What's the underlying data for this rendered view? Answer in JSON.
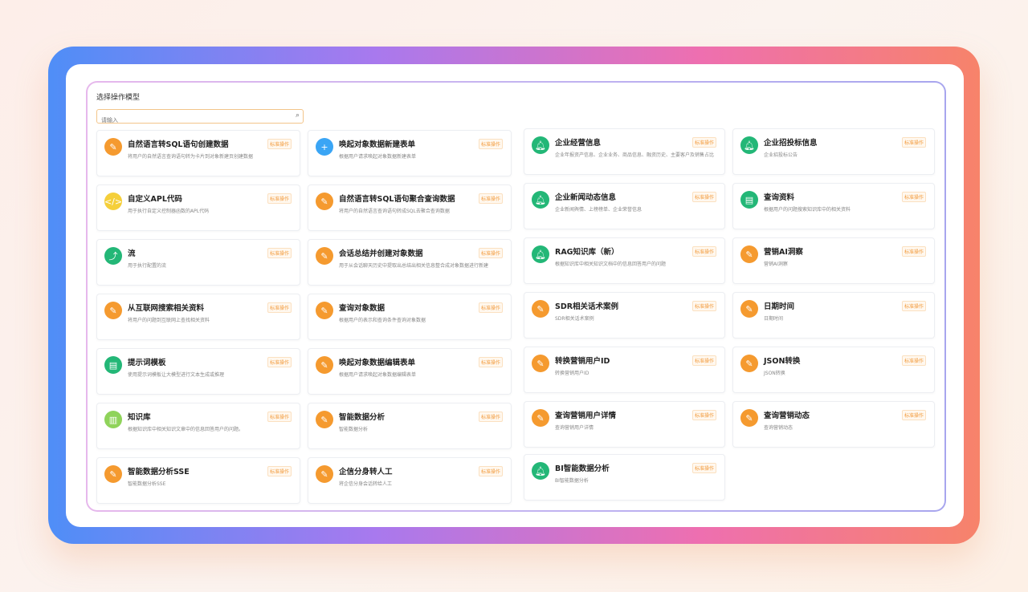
{
  "header": {
    "title": "选择操作模型"
  },
  "search": {
    "placeholder": "请输入",
    "icon": "search-icon"
  },
  "colors": {
    "orange": "#f59a2f",
    "green": "#23b777",
    "blue": "#3aa5f5",
    "yellow": "#f5cf3a",
    "lightgreen": "#8fd35a",
    "badge": "#f29a3b"
  },
  "cards": [
    {
      "name": "自然语言转SQL语句创建数据",
      "desc": "将用户的自然语言查询语句转为卡片到对象新建页创建数据",
      "badge": "标准操作",
      "icon": "edit",
      "color": "orange"
    },
    {
      "name": "唤起对象数据新建表单",
      "desc": "根据用户请求唤起对象数据新建表单",
      "badge": "标准操作",
      "icon": "plus",
      "color": "blue"
    },
    {
      "name": "自定义APL代码",
      "desc": "用于执行自定义控制器函数的APL代码",
      "badge": "标准操作",
      "icon": "code",
      "color": "yellow"
    },
    {
      "name": "自然语言转SQL语句聚合查询数据",
      "desc": "将用户的自然语言查询语句转成SQL去聚合查询数据",
      "badge": "标准操作",
      "icon": "edit",
      "color": "orange"
    },
    {
      "name": "流",
      "desc": "用于执行配置的流",
      "badge": "标准操作",
      "icon": "flow",
      "color": "green"
    },
    {
      "name": "会话总结并创建对象数据",
      "desc": "用于从会话聊天历史中提取出总结出相关信息整合成对象数据进行新建",
      "badge": "标准操作",
      "icon": "edit",
      "color": "orange"
    },
    {
      "name": "从互联网搜索相关资料",
      "desc": "将用户的问题到互联网上查找相关资料",
      "badge": "标准操作",
      "icon": "edit",
      "color": "orange"
    },
    {
      "name": "查询对象数据",
      "desc": "根据用户的表示和查询条件查询对象数据",
      "badge": "标准操作",
      "icon": "edit",
      "color": "orange"
    },
    {
      "name": "提示词模板",
      "desc": "使用提示词模板让大模型进行文本生成或推理",
      "badge": "标准操作",
      "icon": "template",
      "color": "green"
    },
    {
      "name": "唤起对象数据编辑表单",
      "desc": "根据用户请求唤起对象数据编辑表单",
      "badge": "标准操作",
      "icon": "edit",
      "color": "orange"
    },
    {
      "name": "知识库",
      "desc": "根据知识库中相关知识文章中的信息回答用户的问题。",
      "badge": "标准操作",
      "icon": "doc",
      "color": "lightgreen"
    },
    {
      "name": "智能数据分析",
      "desc": "智能数据分析",
      "badge": "标准操作",
      "icon": "edit",
      "color": "orange"
    },
    {
      "name": "智能数据分析SSE",
      "desc": "智能数据分析SSE",
      "badge": "标准操作",
      "icon": "edit",
      "color": "orange"
    },
    {
      "name": "企信分身转人工",
      "desc": "将企信分身会话转给人工",
      "badge": "标准操作",
      "icon": "edit",
      "color": "orange"
    },
    {
      "name": "企业经营信息",
      "desc": "企业年报资产信息、企业业务、商品信息、融资历史、主要客户及销售占比",
      "badge": "标准操作",
      "icon": "bell",
      "color": "green"
    },
    {
      "name": "企业招投标信息",
      "desc": "企业招投标公告",
      "badge": "标准操作",
      "icon": "bell",
      "color": "green"
    },
    {
      "name": "企业新闻动态信息",
      "desc": "企业新闻舆情、上榜榜单、企业荣誉信息",
      "badge": "标准操作",
      "icon": "bell",
      "color": "green"
    },
    {
      "name": "查询资料",
      "desc": "根据用户的问题搜索知识库中的相关资料",
      "badge": "标准操作",
      "icon": "template",
      "color": "green"
    },
    {
      "name": "RAG知识库（新）",
      "desc": "根据知识库中相关知识文档中的信息回答用户的问题",
      "badge": "标准操作",
      "icon": "bell",
      "color": "green"
    },
    {
      "name": "营销AI洞察",
      "desc": "营销AI洞察",
      "badge": "标准操作",
      "icon": "edit",
      "color": "orange"
    },
    {
      "name": "SDR相关话术案例",
      "desc": "SDR相关话术案例",
      "badge": "标准操作",
      "icon": "edit",
      "color": "orange"
    },
    {
      "name": "日期时间",
      "desc": "日期时间",
      "badge": "标准操作",
      "icon": "edit",
      "color": "orange"
    },
    {
      "name": "转换营销用户ID",
      "desc": "转换营销用户ID",
      "badge": "标准操作",
      "icon": "edit",
      "color": "orange"
    },
    {
      "name": "JSON转换",
      "desc": "JSON转换",
      "badge": "标准操作",
      "icon": "edit",
      "color": "orange"
    },
    {
      "name": "查询营销用户详情",
      "desc": "查询营销用户详情",
      "badge": "标准操作",
      "icon": "edit",
      "color": "orange"
    },
    {
      "name": "查询营销动态",
      "desc": "查询营销动态",
      "badge": "标准操作",
      "icon": "edit",
      "color": "orange"
    },
    {
      "name": "BI智能数据分析",
      "desc": "BI智能数据分析",
      "badge": "标准操作",
      "icon": "bell",
      "color": "green"
    }
  ]
}
